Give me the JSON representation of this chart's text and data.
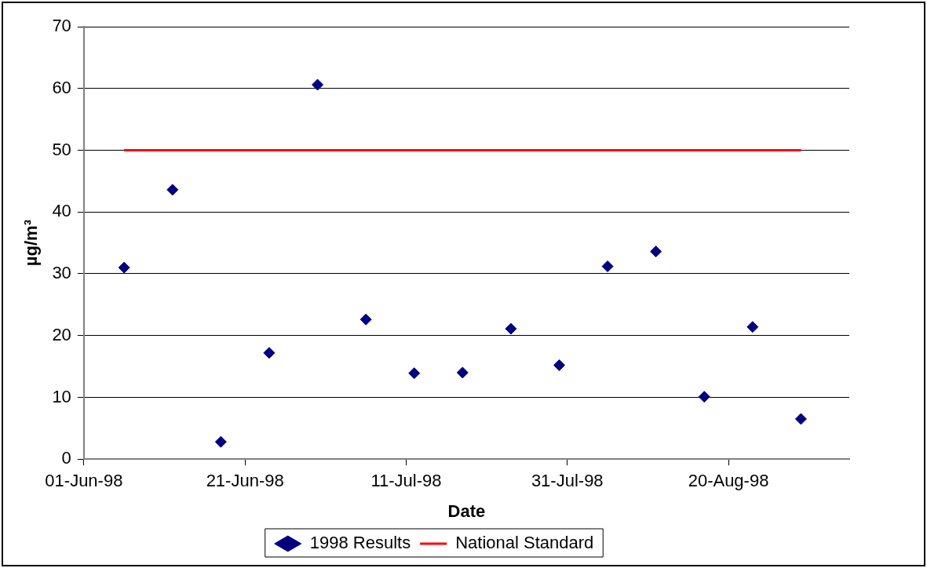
{
  "chart_data": {
    "type": "scatter",
    "xlabel": "Date",
    "ylabel": "µg/m³",
    "xlim": [
      "1998-06-01",
      "1998-09-04"
    ],
    "xticks": [
      {
        "value": "1998-06-01",
        "label": "01-Jun-98"
      },
      {
        "value": "1998-06-21",
        "label": "21-Jun-98"
      },
      {
        "value": "1998-07-11",
        "label": "11-Jul-98"
      },
      {
        "value": "1998-07-31",
        "label": "31-Jul-98"
      },
      {
        "value": "1998-08-20",
        "label": "20-Aug-98"
      }
    ],
    "ylim": [
      0,
      70
    ],
    "yticks": [
      0,
      10,
      20,
      30,
      40,
      50,
      60,
      70
    ],
    "grid": "y",
    "legend": "bottom",
    "series": [
      {
        "name": "1998 Results",
        "marker": "diamond",
        "color": "#000080",
        "x": [
          "1998-06-06",
          "1998-06-12",
          "1998-06-18",
          "1998-06-24",
          "1998-06-30",
          "1998-07-06",
          "1998-07-12",
          "1998-07-18",
          "1998-07-24",
          "1998-07-30",
          "1998-08-05",
          "1998-08-11",
          "1998-08-17",
          "1998-08-23",
          "1998-08-29"
        ],
        "values": [
          31.0,
          43.6,
          2.8,
          17.2,
          60.6,
          22.6,
          13.9,
          14.0,
          21.1,
          15.2,
          31.2,
          33.6,
          10.1,
          21.4,
          6.5
        ]
      },
      {
        "name": "National Standard",
        "type": "line",
        "marker": "none",
        "line_style": "solid",
        "color": "#ff0000",
        "x": [
          "1998-06-06",
          "1998-08-29"
        ],
        "values": [
          50,
          50
        ]
      }
    ]
  }
}
